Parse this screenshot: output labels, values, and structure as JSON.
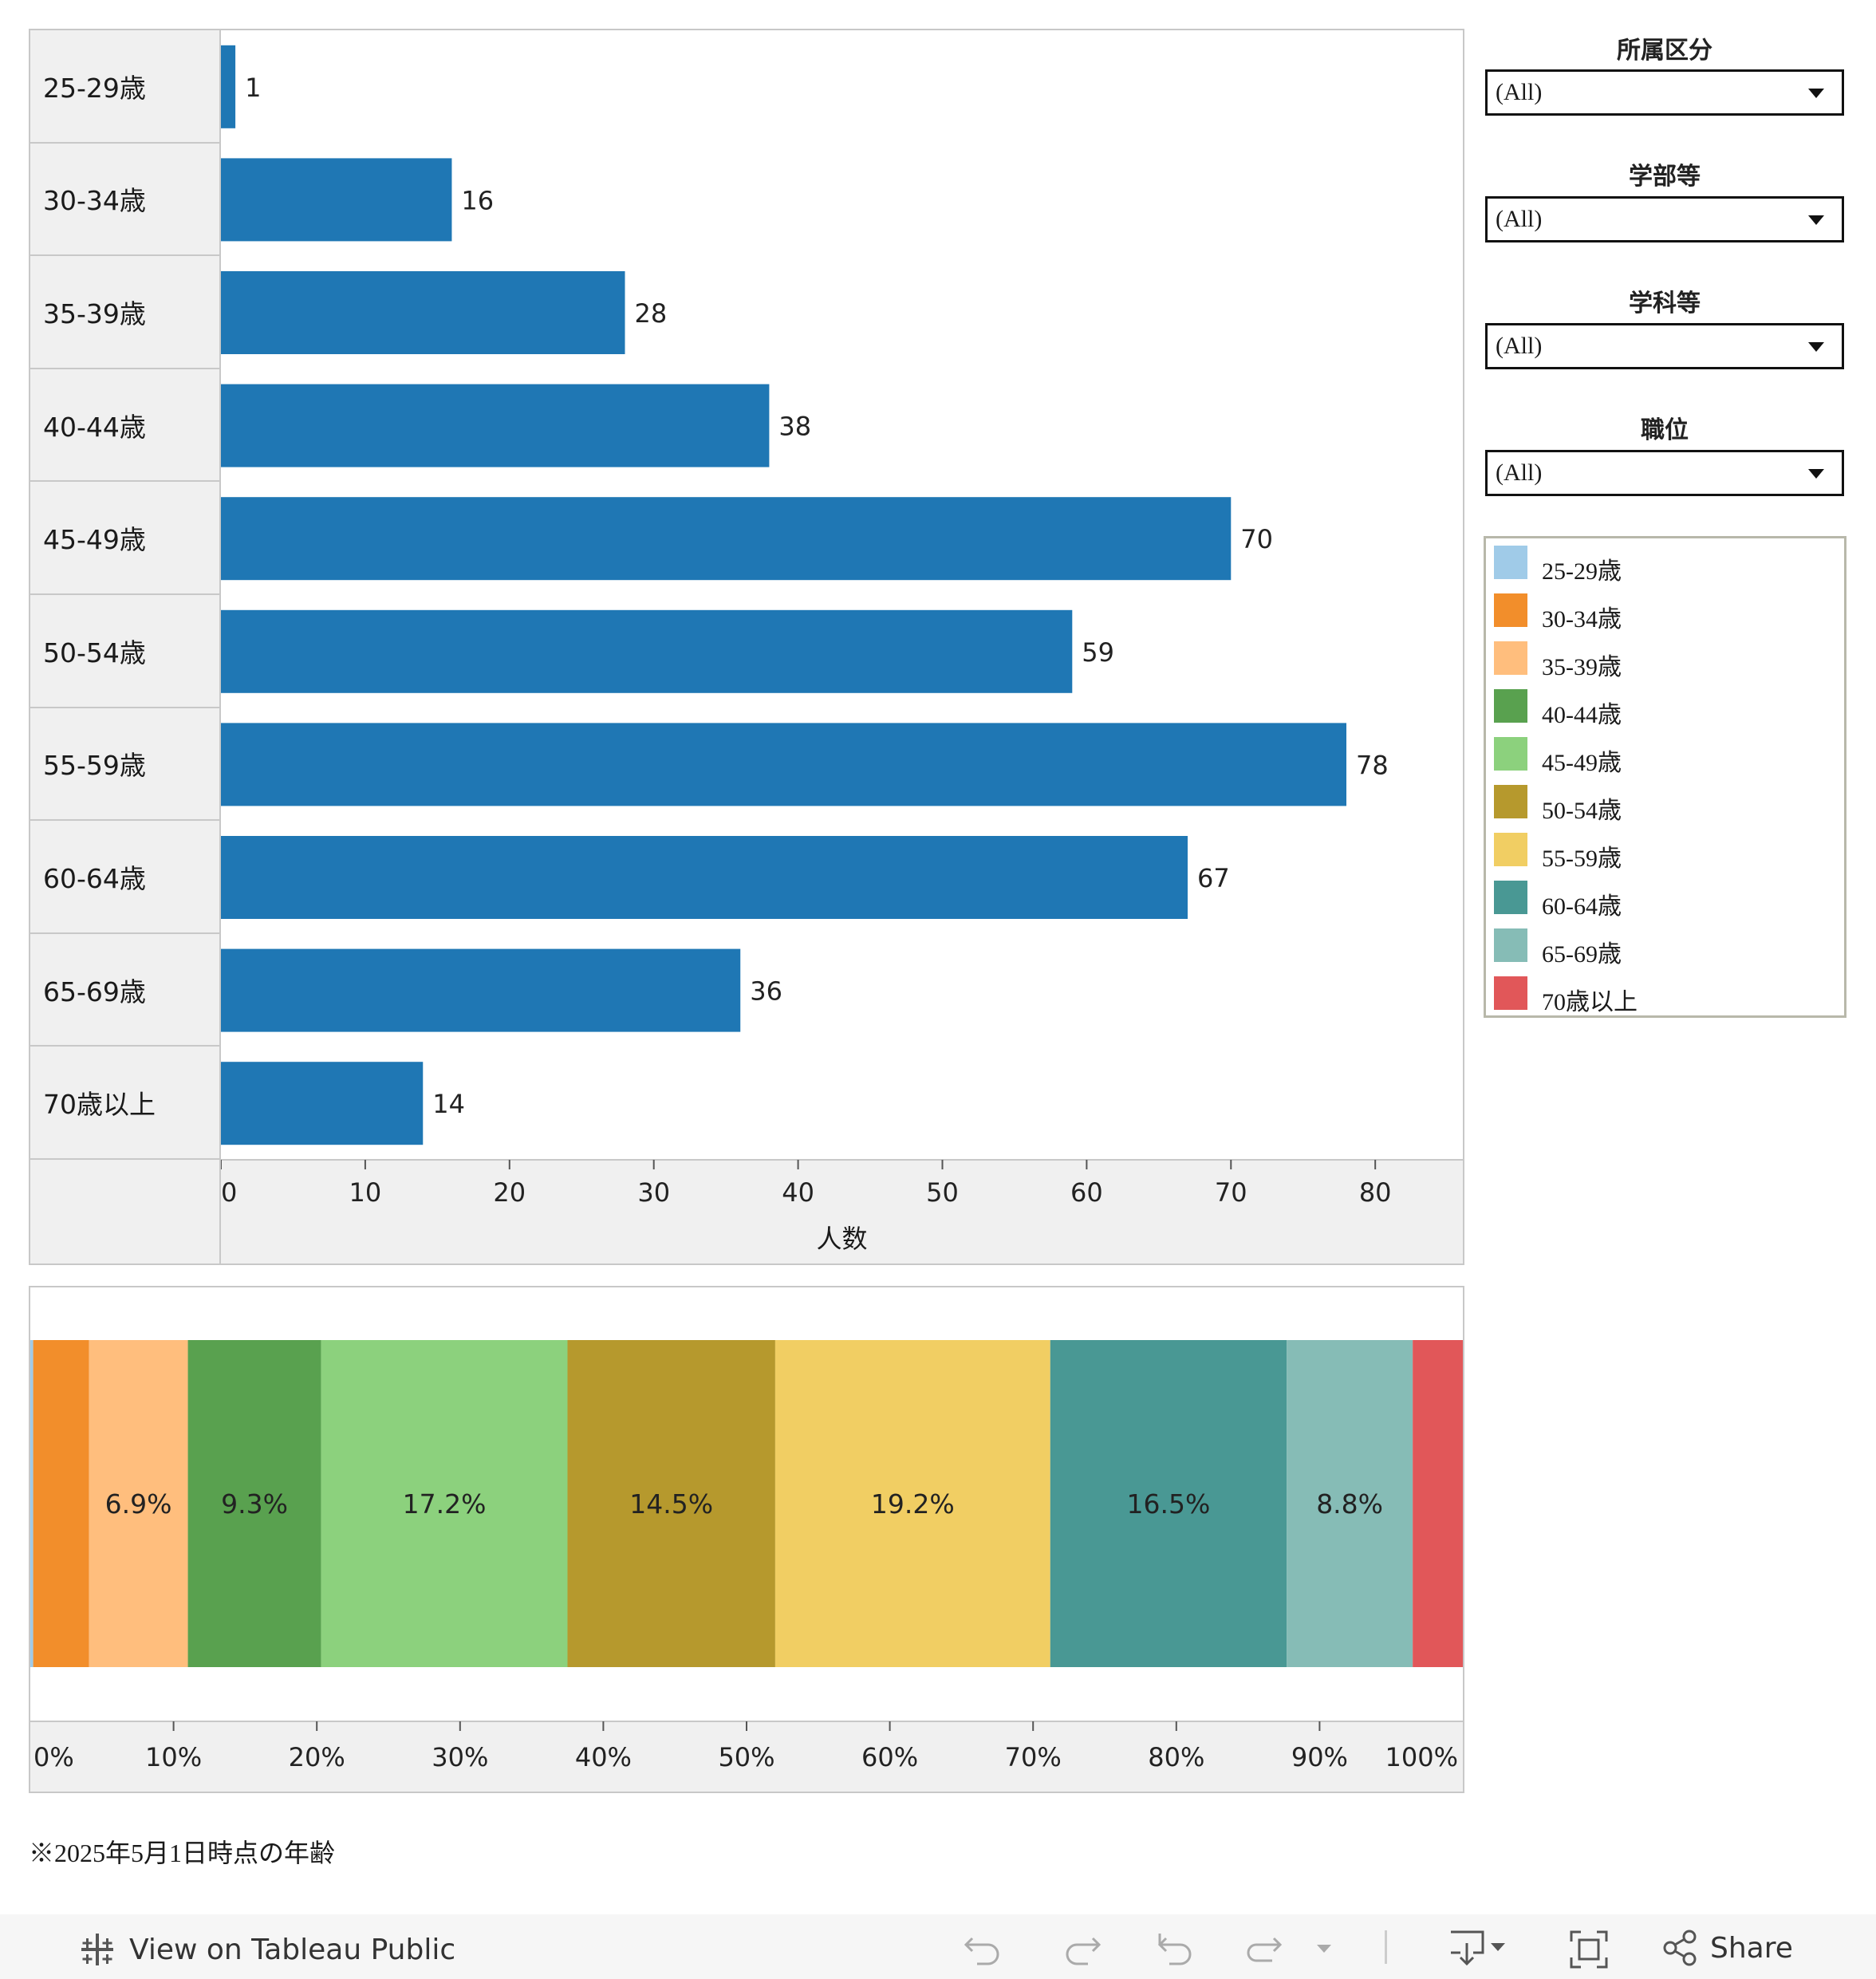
{
  "chart_data": [
    {
      "type": "bar",
      "orientation": "horizontal",
      "categories": [
        "25-29歳",
        "30-34歳",
        "35-39歳",
        "40-44歳",
        "45-49歳",
        "50-54歳",
        "55-59歳",
        "60-64歳",
        "65-69歳",
        "70歳以上"
      ],
      "values": [
        1,
        16,
        28,
        38,
        70,
        59,
        78,
        67,
        36,
        14
      ],
      "data_labels": [
        "1",
        "16",
        "28",
        "38",
        "70",
        "59",
        "78",
        "67",
        "36",
        "14"
      ],
      "xlabel": "人数",
      "xlim": [
        0,
        85
      ],
      "xticks": [
        0,
        10,
        20,
        30,
        40,
        50,
        60,
        70,
        80
      ],
      "xtick_labels": [
        "0",
        "10",
        "20",
        "30",
        "40",
        "50",
        "60",
        "70",
        "80"
      ],
      "bar_color": "#1f77b4"
    },
    {
      "type": "bar",
      "orientation": "stacked-horizontal-100",
      "categories": [
        "25-29歳",
        "30-34歳",
        "35-39歳",
        "40-44歳",
        "45-49歳",
        "50-54歳",
        "55-59歳",
        "60-64歳",
        "65-69歳",
        "70歳以上"
      ],
      "values": [
        0.2,
        3.9,
        6.9,
        9.3,
        17.2,
        14.5,
        19.2,
        16.5,
        8.8,
        3.5
      ],
      "data_labels": [
        "",
        "",
        "6.9%",
        "9.3%",
        "17.2%",
        "14.5%",
        "19.2%",
        "16.5%",
        "8.8%",
        ""
      ],
      "colors": [
        "#a0cbe8",
        "#f28e2b",
        "#ffbe7d",
        "#59a14f",
        "#8cd17d",
        "#b6992d",
        "#f1ce63",
        "#499894",
        "#86bcb6",
        "#e15759"
      ],
      "xlim": [
        0,
        100
      ],
      "xticks": [
        0,
        10,
        20,
        30,
        40,
        50,
        60,
        70,
        80,
        90,
        100
      ],
      "xtick_labels": [
        "0%",
        "10%",
        "20%",
        "30%",
        "40%",
        "50%",
        "60%",
        "70%",
        "80%",
        "90%",
        "100%"
      ]
    }
  ],
  "filters": [
    {
      "title": "所属区分",
      "value": "(All)"
    },
    {
      "title": "学部等",
      "value": "(All)"
    },
    {
      "title": "学科等",
      "value": "(All)"
    },
    {
      "title": "職位",
      "value": "(All)"
    }
  ],
  "legend": [
    {
      "label": "25-29歳",
      "color": "#a0cbe8"
    },
    {
      "label": "30-34歳",
      "color": "#f28e2b"
    },
    {
      "label": "35-39歳",
      "color": "#ffbe7d"
    },
    {
      "label": "40-44歳",
      "color": "#59a14f"
    },
    {
      "label": "45-49歳",
      "color": "#8cd17d"
    },
    {
      "label": "50-54歳",
      "color": "#b6992d"
    },
    {
      "label": "55-59歳",
      "color": "#f1ce63"
    },
    {
      "label": "60-64歳",
      "color": "#499894"
    },
    {
      "label": "65-69歳",
      "color": "#86bcb6"
    },
    {
      "label": "70歳以上",
      "color": "#e15759"
    }
  ],
  "footnote": "※2025年5月1日時点の年齢",
  "toolbar": {
    "view_label": "View on Tableau Public",
    "share_label": "Share"
  }
}
